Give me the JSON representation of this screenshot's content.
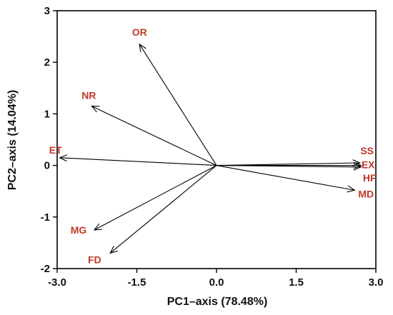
{
  "chart_data": {
    "type": "biplot",
    "xlabel": "PC1–axis (78.48%)",
    "ylabel": "PC2–axis (14.04%)",
    "xlim": [
      -3.0,
      3.0
    ],
    "ylim": [
      -2,
      3
    ],
    "x_ticks": [
      "-3.0",
      "-1.5",
      "0.0",
      "1.5",
      "3.0"
    ],
    "y_ticks": [
      "3",
      "2",
      "1",
      "0",
      "-1",
      "-2"
    ],
    "grid": false,
    "label_color": "#c0392b",
    "arrow_color": "#000000",
    "vectors": [
      {
        "label": "OR",
        "x": -1.45,
        "y": 2.35
      },
      {
        "label": "NR",
        "x": -2.35,
        "y": 1.15
      },
      {
        "label": "ET",
        "x": -2.95,
        "y": 0.15
      },
      {
        "label": "MG",
        "x": -2.3,
        "y": -1.25
      },
      {
        "label": "FD",
        "x": -2.0,
        "y": -1.7
      },
      {
        "label": "SS",
        "x": 2.7,
        "y": 0.05
      },
      {
        "label": "EX",
        "x": 2.72,
        "y": 0.0
      },
      {
        "label": "HF",
        "x": 2.72,
        "y": -0.03
      },
      {
        "label": "MD",
        "x": 2.6,
        "y": -0.48
      }
    ]
  }
}
